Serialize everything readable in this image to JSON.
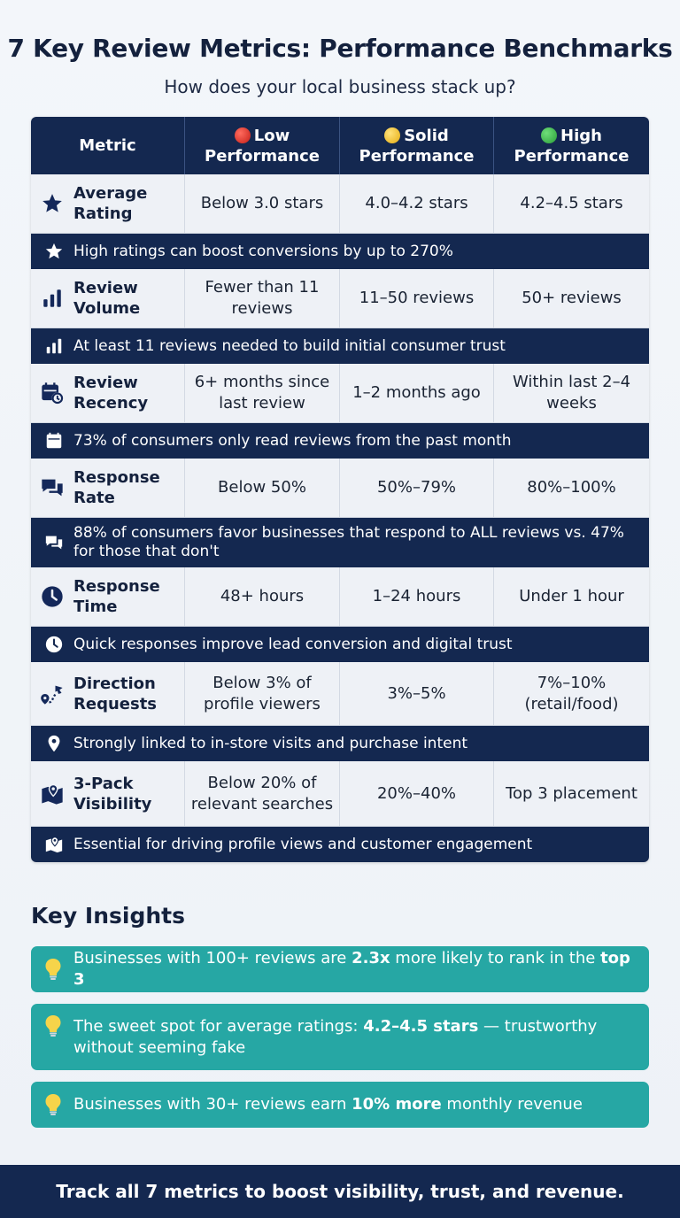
{
  "header": {
    "title": "7 Key Review Metrics: Performance Benchmarks",
    "subtitle": "How does your local business stack up?"
  },
  "table": {
    "columns": {
      "metric": "Metric",
      "low": "Low Performance",
      "solid": "Solid Performance",
      "high": "High Performance"
    },
    "column_colors": {
      "low": "#d9342b",
      "solid": "#f2c12e",
      "high": "#3cb44b"
    },
    "rows": [
      {
        "icon": "star-icon",
        "metric": "Average Rating",
        "low": "Below 3.0 stars",
        "solid": "4.0–4.2 stars",
        "high": "4.2–4.5 stars",
        "note": "High ratings can boost conversions by up to 270%"
      },
      {
        "icon": "bar-chart-icon",
        "metric": "Review Volume",
        "low": "Fewer than 11 reviews",
        "solid": "11–50 reviews",
        "high": "50+ reviews",
        "note": "At least 11 reviews needed to build initial consumer trust"
      },
      {
        "icon": "calendar-clock-icon",
        "metric": "Review Recency",
        "low": "6+ months since last review",
        "solid": "1–2 months ago",
        "high": "Within last 2–4 weeks",
        "note": "73% of consumers only read reviews from the past month"
      },
      {
        "icon": "chat-bubbles-icon",
        "metric": "Response Rate",
        "low": "Below 50%",
        "solid": "50%–79%",
        "high": "80%–100%",
        "note": "88% of consumers favor businesses that respond to ALL reviews vs. 47% for those that don't"
      },
      {
        "icon": "clock-icon",
        "metric": "Response Time",
        "low": "48+ hours",
        "solid": "1–24 hours",
        "high": "Under 1 hour",
        "note": "Quick responses improve lead conversion and digital trust"
      },
      {
        "icon": "directions-icon",
        "metric": "Direction Requests",
        "low": "Below 3% of profile viewers",
        "solid": "3%–5%",
        "high": "7%–10% (retail/food)",
        "note": "Strongly linked to in-store visits and purchase intent"
      },
      {
        "icon": "map-pin-icon",
        "metric": "3-Pack Visibility",
        "low": "Below 20% of relevant searches",
        "solid": "20%–40%",
        "high": "Top 3 placement",
        "note": "Essential for driving profile views and customer engagement"
      }
    ]
  },
  "insights": {
    "title": "Key Insights",
    "items": [
      {
        "icon": "lightbulb-icon",
        "pre": "Businesses with 100+ reviews are ",
        "bold1": "2.3x",
        "mid": " more likely to rank in the ",
        "bold2": "top 3",
        "post": ""
      },
      {
        "icon": "lightbulb-icon",
        "pre": "The sweet spot for average ratings: ",
        "bold1": "4.2–4.5 stars",
        "mid": " — trustworthy without seeming fake",
        "bold2": "",
        "post": ""
      },
      {
        "icon": "lightbulb-icon",
        "pre": "Businesses with 30+ reviews earn ",
        "bold1": "10% more",
        "mid": " monthly revenue",
        "bold2": "",
        "post": ""
      }
    ]
  },
  "footer": {
    "text": "Track all 7 metrics to boost visibility, trust, and revenue."
  }
}
